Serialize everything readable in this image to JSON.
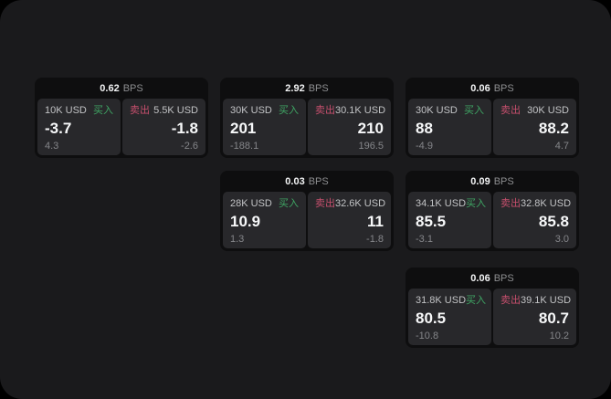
{
  "page": {
    "background": "#000000",
    "container_background": "#1a1a1c"
  },
  "colors": {
    "buy_accent": "#3fa564",
    "sell_accent": "#c64f6d",
    "card_background": "#0e0e0f",
    "panel_background": "#28282b"
  },
  "labels": {
    "bps_suffix": "BPS",
    "buy": "买入",
    "sell": "卖出"
  },
  "cards": [
    {
      "bps": "0.62",
      "buy": {
        "amount": "10K USD",
        "value": "-3.7",
        "delta": "4.3"
      },
      "sell": {
        "amount": "5.5K USD",
        "value": "-1.8",
        "delta": "-2.6"
      }
    },
    {
      "bps": "2.92",
      "buy": {
        "amount": "30K USD",
        "value": "201",
        "delta": "-188.1"
      },
      "sell": {
        "amount": "30.1K USD",
        "value": "210",
        "delta": "196.5"
      }
    },
    {
      "bps": "0.06",
      "buy": {
        "amount": "30K USD",
        "value": "88",
        "delta": "-4.9"
      },
      "sell": {
        "amount": "30K USD",
        "value": "88.2",
        "delta": "4.7"
      }
    },
    {
      "bps": "0.03",
      "buy": {
        "amount": "28K USD",
        "value": "10.9",
        "delta": "1.3"
      },
      "sell": {
        "amount": "32.6K USD",
        "value": "11",
        "delta": "-1.8"
      }
    },
    {
      "bps": "0.09",
      "buy": {
        "amount": "34.1K USD",
        "value": "85.5",
        "delta": "-3.1"
      },
      "sell": {
        "amount": "32.8K USD",
        "value": "85.8",
        "delta": "3.0"
      }
    },
    {
      "bps": "0.06",
      "buy": {
        "amount": "31.8K USD",
        "value": "80.5",
        "delta": "-10.8"
      },
      "sell": {
        "amount": "39.1K USD",
        "value": "80.7",
        "delta": "10.2"
      }
    }
  ]
}
